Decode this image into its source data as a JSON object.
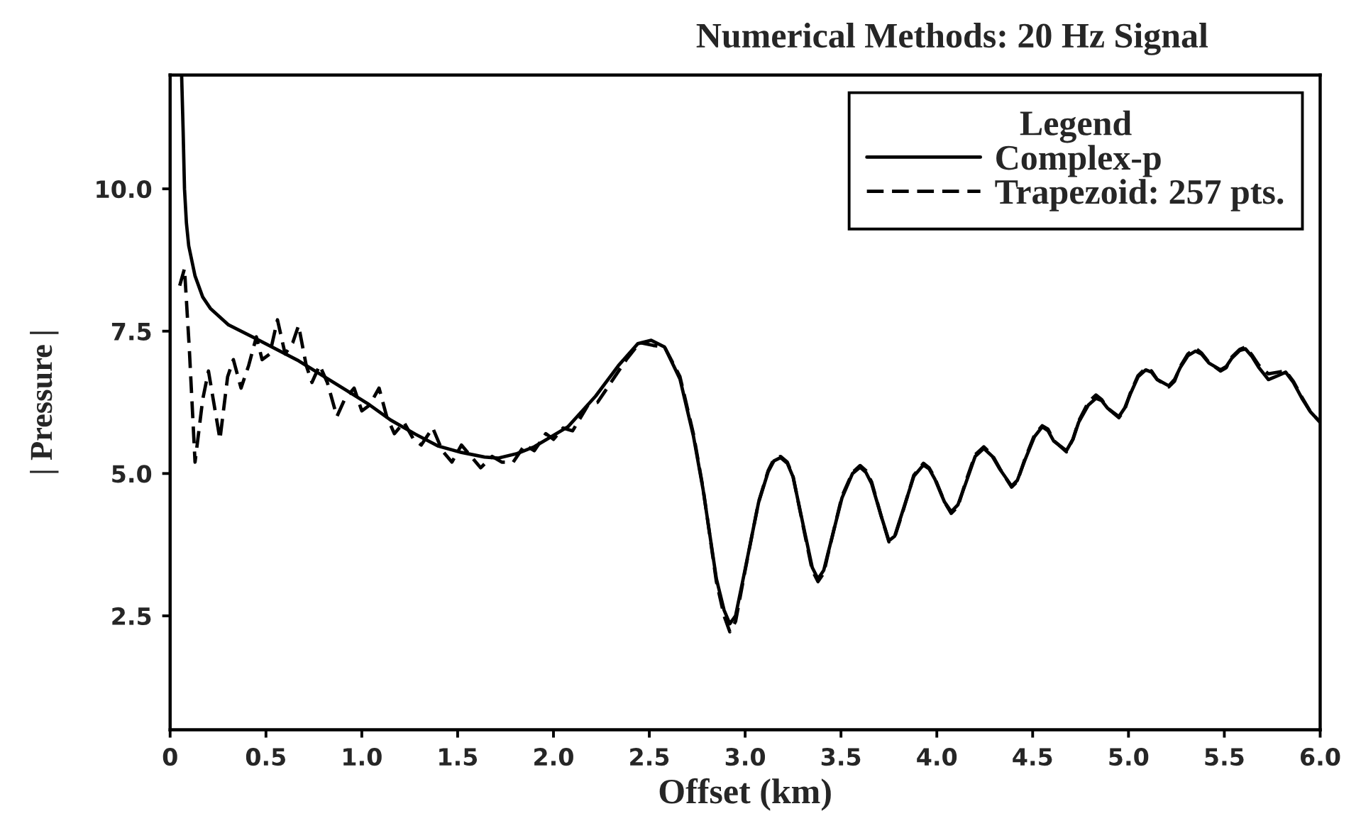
{
  "chart_data": {
    "type": "line",
    "title": "Numerical Methods: 20 Hz Signal",
    "xlabel": "Offset (km)",
    "ylabel": "| Pressure |",
    "legend_title": "Legend",
    "legend": "top right",
    "grid": false,
    "xlim": [
      0,
      6
    ],
    "ylim": [
      0.5,
      12
    ],
    "xticks": [
      0,
      0.5,
      {
        "value": 1,
        "label": "1.0"
      },
      1.5,
      {
        "value": 2,
        "label": "2.0"
      },
      2.5,
      {
        "value": 3,
        "label": "3.0"
      },
      3.5,
      {
        "value": 4,
        "label": "4.0"
      },
      4.5,
      {
        "value": 5,
        "label": "5.0"
      },
      5.5,
      {
        "value": 6,
        "label": "6.0"
      }
    ],
    "yticks": [
      2.5,
      {
        "value": 5,
        "label": "5.0"
      },
      7.5,
      {
        "value": 10,
        "label": "10.0"
      }
    ],
    "series": [
      {
        "name": "Complex-p",
        "color": "#000000",
        "line_style": "solid",
        "x": [
          0.06,
          0.068,
          0.075,
          0.085,
          0.097,
          0.13,
          0.17,
          0.21,
          0.305,
          0.43,
          0.55,
          0.67,
          0.79,
          0.91,
          1.03,
          1.15,
          1.28,
          1.4,
          1.52,
          1.64,
          1.71,
          1.81,
          1.9,
          2.03,
          2.075,
          2.22,
          2.34,
          2.44,
          2.51,
          2.58,
          2.66,
          2.73,
          2.78,
          2.85,
          2.89,
          2.92,
          2.95,
          3.0,
          3.07,
          3.12,
          3.15,
          3.185,
          3.22,
          3.25,
          3.31,
          3.35,
          3.38,
          3.41,
          3.43,
          3.505,
          3.56,
          3.6,
          3.63,
          3.66,
          3.71,
          3.75,
          3.78,
          3.82,
          3.88,
          3.93,
          3.96,
          3.99,
          4.04,
          4.075,
          4.11,
          4.15,
          4.2,
          4.245,
          4.29,
          4.33,
          4.39,
          4.42,
          4.46,
          4.51,
          4.55,
          4.58,
          4.61,
          4.676,
          4.71,
          4.74,
          4.79,
          4.83,
          4.86,
          4.89,
          4.95,
          4.98,
          5.01,
          5.05,
          5.09,
          5.12,
          5.15,
          5.21,
          5.24,
          5.27,
          5.31,
          5.35,
          5.38,
          5.42,
          5.48,
          5.51,
          5.54,
          5.58,
          5.61,
          5.645,
          5.68,
          5.73,
          5.78,
          5.82,
          5.86,
          5.905,
          5.95,
          6.0
        ],
        "values": [
          12.0,
          11.0,
          10.0,
          9.4,
          9.0,
          8.47,
          8.1,
          7.9,
          7.61,
          7.4,
          7.19,
          6.98,
          6.73,
          6.48,
          6.23,
          5.94,
          5.69,
          5.48,
          5.37,
          5.29,
          5.27,
          5.35,
          5.47,
          5.73,
          5.82,
          6.36,
          6.9,
          7.28,
          7.34,
          7.22,
          6.66,
          5.66,
          4.73,
          3.15,
          2.6,
          2.36,
          2.5,
          3.32,
          4.49,
          5.03,
          5.22,
          5.28,
          5.18,
          4.94,
          3.98,
          3.35,
          3.15,
          3.3,
          3.57,
          4.57,
          5.0,
          5.11,
          5.02,
          4.82,
          4.25,
          3.82,
          3.9,
          4.32,
          4.95,
          5.15,
          5.08,
          4.9,
          4.5,
          4.33,
          4.45,
          4.82,
          5.3,
          5.44,
          5.3,
          5.07,
          4.78,
          4.88,
          5.24,
          5.65,
          5.82,
          5.75,
          5.57,
          5.4,
          5.6,
          5.9,
          6.2,
          6.32,
          6.28,
          6.15,
          6.0,
          6.15,
          6.4,
          6.7,
          6.82,
          6.78,
          6.65,
          6.54,
          6.65,
          6.86,
          7.07,
          7.15,
          7.1,
          6.94,
          6.82,
          6.88,
          7.03,
          7.16,
          7.19,
          7.05,
          6.86,
          6.65,
          6.72,
          6.78,
          6.6,
          6.32,
          6.08,
          5.9
        ]
      },
      {
        "name": "Trapezoid: 257 pts.",
        "color": "#000000",
        "line_style": "dashed",
        "x": [
          0.05,
          0.075,
          0.1,
          0.13,
          0.17,
          0.2,
          0.23,
          0.26,
          0.3,
          0.33,
          0.37,
          0.41,
          0.45,
          0.48,
          0.52,
          0.56,
          0.6,
          0.64,
          0.67,
          0.71,
          0.74,
          0.78,
          0.82,
          0.87,
          0.91,
          0.96,
          1.0,
          1.04,
          1.09,
          1.13,
          1.17,
          1.22,
          1.27,
          1.31,
          1.37,
          1.42,
          1.47,
          1.52,
          1.57,
          1.62,
          1.68,
          1.73,
          1.79,
          1.85,
          1.9,
          1.96,
          2.0,
          2.05,
          2.1,
          2.18,
          2.23,
          2.3,
          2.38,
          2.45,
          2.52,
          2.58,
          2.66,
          2.73,
          2.78,
          2.85,
          2.89,
          2.92,
          2.95,
          3.0,
          3.07,
          3.12,
          3.15,
          3.185,
          3.22,
          3.25,
          3.31,
          3.35,
          3.38,
          3.41,
          3.43,
          3.505,
          3.56,
          3.6,
          3.63,
          3.66,
          3.71,
          3.75,
          3.78,
          3.82,
          3.88,
          3.93,
          3.96,
          3.99,
          4.04,
          4.075,
          4.11,
          4.15,
          4.2,
          4.245,
          4.29,
          4.33,
          4.39,
          4.42,
          4.46,
          4.51,
          4.55,
          4.58,
          4.61,
          4.676,
          4.71,
          4.74,
          4.79,
          4.83,
          4.86,
          4.89,
          4.95,
          4.98,
          5.01,
          5.05,
          5.09,
          5.12,
          5.15,
          5.21,
          5.24,
          5.27,
          5.31,
          5.35,
          5.38,
          5.42,
          5.48,
          5.51,
          5.54,
          5.58,
          5.61,
          5.645,
          5.68,
          5.73,
          5.78,
          5.82,
          5.86,
          5.905,
          5.95,
          6.0
        ],
        "values": [
          8.3,
          8.6,
          7.2,
          5.2,
          6.3,
          6.8,
          6.2,
          5.6,
          6.7,
          7.0,
          6.5,
          6.9,
          7.4,
          7.0,
          7.1,
          7.7,
          7.1,
          7.3,
          7.6,
          6.9,
          6.6,
          6.9,
          6.6,
          6.0,
          6.3,
          6.5,
          6.1,
          6.2,
          6.5,
          6.0,
          5.7,
          5.9,
          5.6,
          5.5,
          5.8,
          5.4,
          5.2,
          5.5,
          5.3,
          5.1,
          5.3,
          5.2,
          5.2,
          5.5,
          5.4,
          5.7,
          5.6,
          5.8,
          5.75,
          6.2,
          6.25,
          6.6,
          7.0,
          7.3,
          7.25,
          7.22,
          6.7,
          5.7,
          4.75,
          3.1,
          2.5,
          2.22,
          2.4,
          3.3,
          4.5,
          5.05,
          5.25,
          5.3,
          5.2,
          4.95,
          3.95,
          3.3,
          3.1,
          3.25,
          3.55,
          4.6,
          5.02,
          5.14,
          5.05,
          4.85,
          4.25,
          3.8,
          3.88,
          4.3,
          4.97,
          5.18,
          5.1,
          4.92,
          4.5,
          4.3,
          4.42,
          4.85,
          5.33,
          5.47,
          5.32,
          5.08,
          4.76,
          4.86,
          5.26,
          5.68,
          5.84,
          5.78,
          5.58,
          5.38,
          5.6,
          5.92,
          6.25,
          6.38,
          6.3,
          6.15,
          5.98,
          6.12,
          6.42,
          6.72,
          6.85,
          6.8,
          6.65,
          6.52,
          6.62,
          6.88,
          7.1,
          7.2,
          7.12,
          6.95,
          6.8,
          6.86,
          7.05,
          7.18,
          7.22,
          7.08,
          6.9,
          6.75,
          6.78,
          6.8,
          6.62,
          6.34,
          6.08,
          5.9
        ]
      }
    ]
  }
}
